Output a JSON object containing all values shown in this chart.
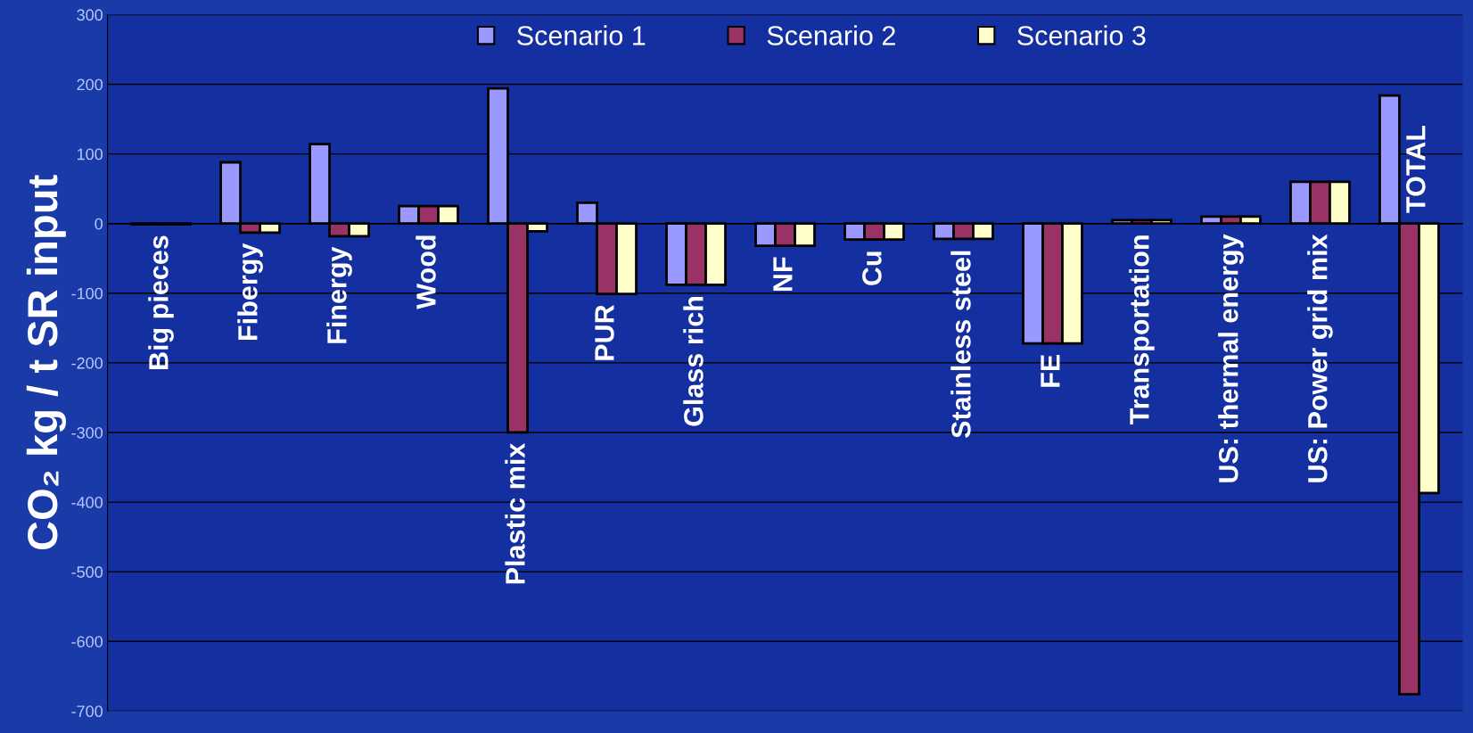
{
  "chart_data": {
    "type": "bar",
    "ylabel": "CO₂ kg / t SR input",
    "categories": [
      "Big pieces",
      "Fibergy",
      "Finergy",
      "Wood",
      "Plastic mix",
      "PUR",
      "Glass rich",
      "NF",
      "Cu",
      "Stainless steel",
      "FE",
      "Transportation",
      "US: thermal energy",
      "US: Power grid mix",
      "TOTAL"
    ],
    "series": [
      {
        "name": "Scenario 1",
        "color": "#9999ff",
        "values": [
          -1,
          88,
          114,
          25,
          194,
          30,
          -88,
          -32,
          -23,
          -22,
          -172,
          5,
          10,
          60,
          184
        ]
      },
      {
        "name": "Scenario 2",
        "color": "#993366",
        "values": [
          -1,
          -13,
          -18,
          25,
          -300,
          -101,
          -88,
          -32,
          -23,
          -22,
          -172,
          5,
          10,
          60,
          -676
        ]
      },
      {
        "name": "Scenario 3",
        "color": "#ffffcc",
        "values": [
          -1,
          -13,
          -18,
          25,
          -11,
          -101,
          -88,
          -32,
          -23,
          -22,
          -172,
          5,
          10,
          60,
          -387
        ]
      }
    ],
    "ylim": [
      -700,
      300
    ],
    "yticks": [
      -700,
      -600,
      -500,
      -400,
      -300,
      -200,
      -100,
      0,
      100,
      200,
      300
    ],
    "grid": "y",
    "legend": "top"
  }
}
